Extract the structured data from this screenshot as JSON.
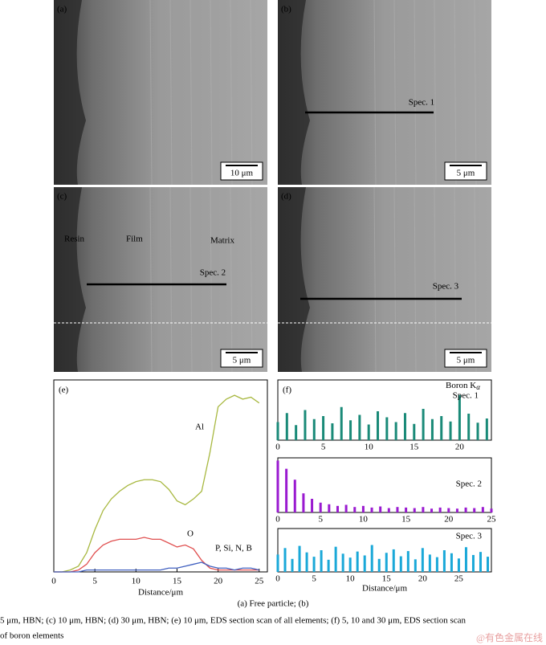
{
  "panels": [
    {
      "label": "(a)",
      "scale": "10 μm"
    },
    {
      "label": "(b)",
      "scale": "5 μm",
      "spec": "Spec. 1"
    },
    {
      "label": "(c)",
      "scale": "5 μm",
      "spec": "Spec. 2",
      "regions": [
        "Resin",
        "Film",
        "Matrix"
      ]
    },
    {
      "label": "(d)",
      "scale": "5 μm",
      "spec": "Spec. 3"
    }
  ],
  "chart_data": [
    {
      "type": "line",
      "label": "(e)",
      "xlabel": "Distance/μm",
      "x": [
        0,
        1,
        2,
        3,
        4,
        5,
        6,
        7,
        8,
        9,
        10,
        11,
        12,
        13,
        14,
        15,
        16,
        17,
        18,
        19,
        20,
        21,
        22,
        23,
        24,
        25
      ],
      "xlim": [
        0,
        26
      ],
      "xticks": [
        0,
        5,
        10,
        15,
        20,
        25
      ],
      "ylim": [
        0,
        100
      ],
      "series": [
        {
          "name": "Al",
          "color": "#a8b840",
          "values": [
            0,
            0,
            1,
            3,
            10,
            22,
            32,
            38,
            42,
            45,
            47,
            48,
            48,
            47,
            43,
            37,
            35,
            38,
            42,
            62,
            86,
            90,
            92,
            90,
            91,
            88
          ]
        },
        {
          "name": "O",
          "color": "#e05050",
          "values": [
            0,
            0,
            0,
            1,
            4,
            10,
            14,
            16,
            17,
            17,
            17,
            18,
            17,
            17,
            15,
            13,
            14,
            12,
            6,
            2,
            1,
            1,
            1,
            1,
            1,
            1
          ]
        },
        {
          "name": "P, Si, N, B",
          "color": "#4060c0",
          "values": [
            0,
            0,
            0,
            0,
            1,
            1,
            1,
            1,
            1,
            1,
            1,
            1,
            1,
            1,
            2,
            2,
            3,
            4,
            5,
            3,
            2,
            2,
            1,
            2,
            2,
            1
          ]
        }
      ]
    },
    {
      "type": "bar",
      "label": "(f)",
      "title": "Boron K",
      "title_subscript": "α",
      "name": "Spec. 1",
      "color": "#1a8a78",
      "x": [
        0,
        1,
        2,
        3,
        4,
        5,
        6,
        7,
        8,
        9,
        10,
        11,
        12,
        13,
        14,
        15,
        16,
        17,
        18,
        19,
        20,
        21,
        22,
        23
      ],
      "values": [
        30,
        45,
        25,
        50,
        35,
        40,
        28,
        55,
        33,
        42,
        26,
        48,
        38,
        30,
        45,
        27,
        52,
        35,
        40,
        31,
        75,
        44,
        29,
        36
      ],
      "xlim": [
        0,
        23.5
      ],
      "xticks": [
        0,
        5,
        10,
        15,
        20
      ],
      "ylim": [
        0,
        100
      ]
    },
    {
      "type": "bar",
      "name": "Spec. 2",
      "color": "#9a1ad0",
      "x": [
        0,
        1,
        2,
        3,
        4,
        5,
        6,
        7,
        8,
        9,
        10,
        11,
        12,
        13,
        14,
        15,
        16,
        17,
        18,
        19,
        20,
        21,
        22,
        23,
        24,
        25
      ],
      "values": [
        95,
        80,
        60,
        35,
        25,
        18,
        15,
        12,
        14,
        10,
        12,
        9,
        11,
        8,
        10,
        9,
        8,
        10,
        7,
        9,
        8,
        7,
        9,
        8,
        10,
        7
      ],
      "xlim": [
        0,
        25
      ],
      "xticks": [
        0,
        5,
        10,
        15,
        20,
        25
      ],
      "ylim": [
        0,
        100
      ]
    },
    {
      "type": "bar",
      "name": "Spec. 3",
      "color": "#1aa8d8",
      "xlabel": "Distance/μm",
      "x": [
        0,
        1,
        2,
        3,
        4,
        5,
        6,
        7,
        8,
        9,
        10,
        11,
        12,
        13,
        14,
        15,
        16,
        17,
        18,
        19,
        20,
        21,
        22,
        23,
        24,
        25,
        26,
        27,
        28,
        29
      ],
      "values": [
        40,
        55,
        30,
        60,
        45,
        35,
        50,
        28,
        58,
        42,
        33,
        47,
        38,
        62,
        30,
        44,
        52,
        36,
        48,
        29,
        55,
        40,
        34,
        50,
        43,
        31,
        57,
        39,
        46,
        35
      ],
      "xlim": [
        0,
        29.5
      ],
      "xticks": [
        0,
        5,
        10,
        15,
        20,
        25
      ],
      "ylim": [
        0,
        100
      ]
    }
  ],
  "caption": [
    "(a) Free particle; (b)",
    "5 μm, HBN; (c) 10 μm, HBN; (d) 30 μm, HBN; (e) 10 μm, EDS section scan of all elements; (f) 5, 10 and 30 μm, EDS section scan",
    "of boron elements"
  ],
  "watermark": "@有色金属在线"
}
